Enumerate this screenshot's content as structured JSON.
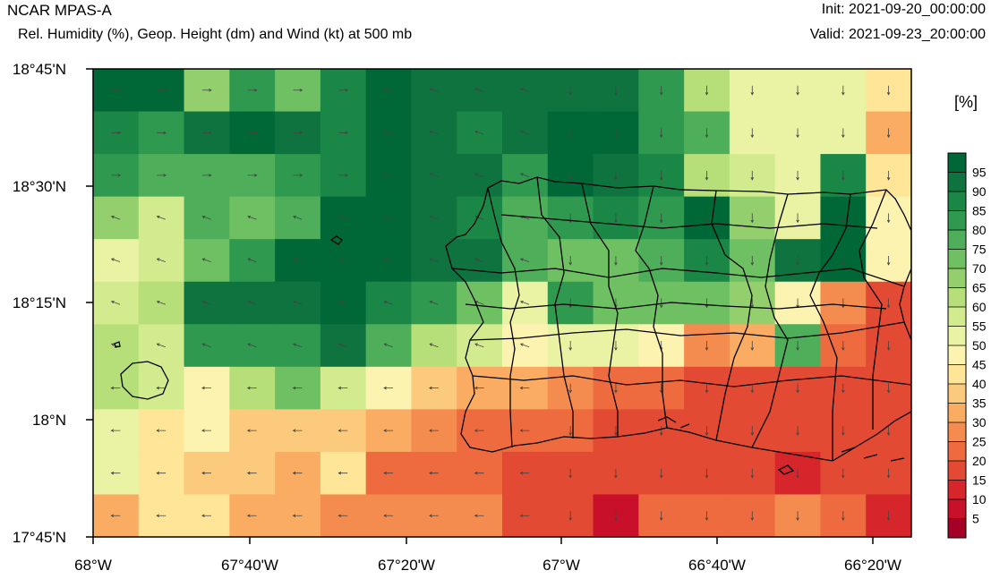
{
  "header": {
    "model": "NCAR MPAS-A",
    "subtitle": "Rel. Humidity (%), Geop. Height (dm) and Wind (kt) at 500 mb",
    "init": "Init: 2021-09-20_00:00:00",
    "valid": "Valid: 2021-09-23_20:00:00"
  },
  "colorbar": {
    "units": "[%]",
    "levels": [
      5,
      10,
      15,
      20,
      25,
      30,
      35,
      40,
      45,
      50,
      55,
      60,
      65,
      70,
      75,
      80,
      85,
      90,
      95
    ],
    "colors": [
      "#a50026",
      "#c8102a",
      "#d7262b",
      "#e34a33",
      "#ee6a3f",
      "#f48c50",
      "#f9ac62",
      "#fcca7d",
      "#fee598",
      "#fdf3b0",
      "#eaf3a4",
      "#d3eb8f",
      "#b6df7a",
      "#93d06d",
      "#6fc062",
      "#4fae59",
      "#2f9a4f",
      "#1b8746",
      "#0f7340",
      "#006837"
    ]
  },
  "axes": {
    "x_ticks": [
      "68°W",
      "67°40'W",
      "67°20'W",
      "67°W",
      "66°40'W",
      "66°20'W"
    ],
    "y_ticks": [
      "18°45'N",
      "18°30'N",
      "18°15'N",
      "18°N",
      "17°45'N"
    ]
  },
  "map_data": {
    "grid_rows_top_to_bottom": [
      [
        95,
        95,
        65,
        80,
        70,
        85,
        95,
        90,
        90,
        90,
        90,
        90,
        80,
        60,
        50,
        50,
        50,
        40
      ],
      [
        85,
        80,
        90,
        95,
        90,
        85,
        95,
        90,
        85,
        90,
        95,
        95,
        80,
        75,
        50,
        50,
        50,
        30
      ],
      [
        80,
        75,
        75,
        75,
        80,
        85,
        95,
        90,
        90,
        80,
        95,
        90,
        85,
        60,
        55,
        50,
        85,
        40
      ],
      [
        65,
        55,
        75,
        70,
        75,
        95,
        95,
        90,
        85,
        75,
        80,
        85,
        80,
        95,
        65,
        50,
        95,
        45
      ],
      [
        50,
        55,
        70,
        80,
        95,
        95,
        95,
        90,
        90,
        75,
        70,
        70,
        75,
        85,
        70,
        90,
        95,
        45
      ],
      [
        55,
        60,
        90,
        90,
        90,
        95,
        85,
        80,
        70,
        50,
        80,
        70,
        70,
        70,
        65,
        45,
        25,
        15
      ],
      [
        60,
        55,
        80,
        80,
        80,
        90,
        75,
        60,
        55,
        45,
        50,
        50,
        45,
        25,
        30,
        75,
        20,
        15
      ],
      [
        60,
        55,
        45,
        60,
        70,
        55,
        45,
        35,
        30,
        30,
        25,
        20,
        20,
        15,
        15,
        15,
        15,
        15
      ],
      [
        50,
        40,
        45,
        35,
        35,
        35,
        30,
        25,
        20,
        20,
        20,
        15,
        15,
        15,
        15,
        15,
        15,
        15
      ],
      [
        50,
        40,
        35,
        35,
        30,
        40,
        20,
        20,
        20,
        15,
        15,
        15,
        15,
        15,
        15,
        10,
        15,
        15
      ],
      [
        30,
        40,
        40,
        30,
        30,
        25,
        25,
        25,
        25,
        15,
        15,
        5,
        20,
        20,
        20,
        25,
        20,
        10
      ]
    ],
    "wind_arrow_rows": 11,
    "wind_arrow_cols": 18
  }
}
